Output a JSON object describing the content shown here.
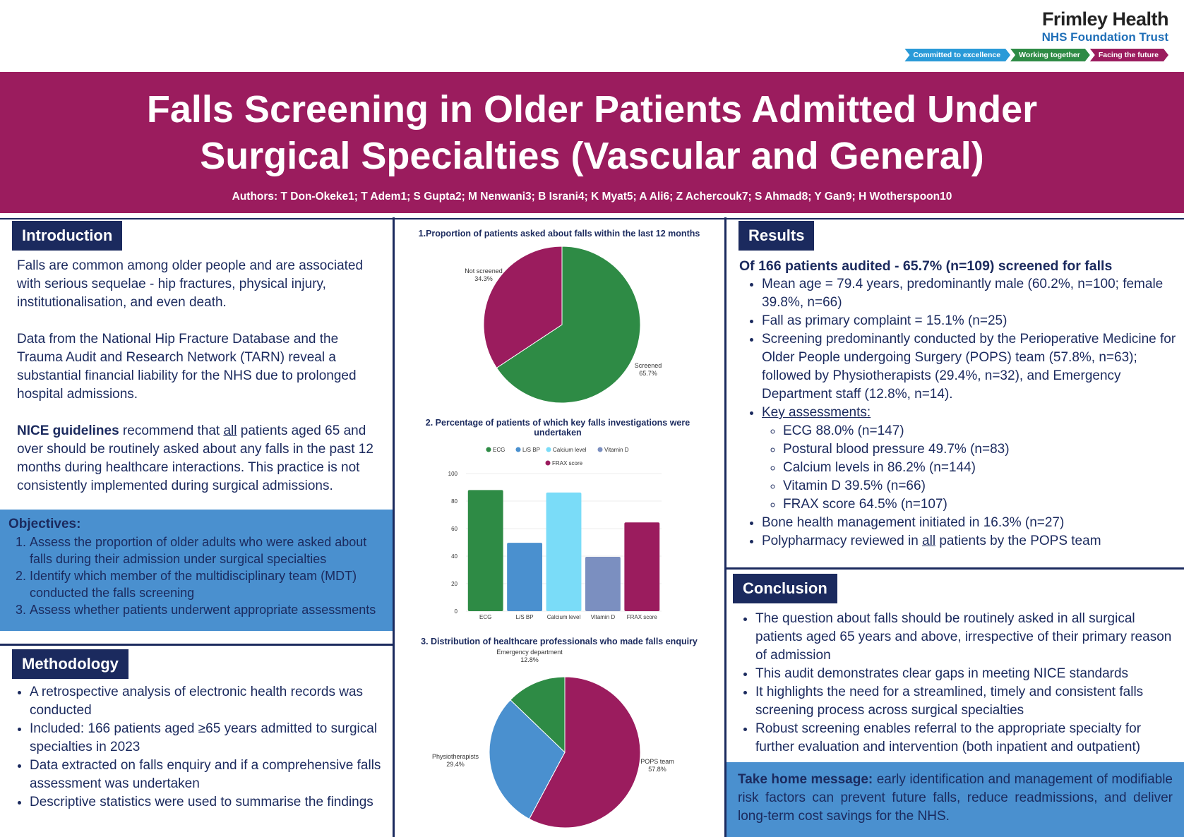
{
  "logo": {
    "name": "Frimley Health",
    "subtitle": "NHS Foundation Trust",
    "values": [
      "Committed to excellence",
      "Working together",
      "Facing the future"
    ],
    "value_colors": [
      "#2a9ad8",
      "#2e8b45",
      "#9b1c5e"
    ]
  },
  "title": "Falls Screening in Older Patients Admitted Under Surgical Specialties (Vascular and General)",
  "authors": "Authors: T Don-Okeke1; T Adem1; S Gupta2; M Nenwani3; B Israni4; K Myat5; A Ali6; Z Achercouk7; S Ahmad8; Y Gan9; H Wotherspoon10",
  "introduction": {
    "heading": "Introduction",
    "p1": "Falls are common among older people and are associated with serious sequelae - hip fractures, physical injury, institutionalisation, and even death.",
    "p2": "Data from the National Hip Fracture Database and the Trauma Audit and Research Network (TARN) reveal a substantial financial liability for the NHS due to prolonged hospital admissions.",
    "p3_bold": "NICE guidelines",
    "p3_a": " recommend that ",
    "p3_u": "all",
    "p3_b": " patients aged 65 and over should be routinely asked about any falls in the past 12 months during healthcare interactions. This practice is not consistently implemented during surgical admissions."
  },
  "objectives": {
    "heading": "Objectives",
    "items": [
      "Assess the proportion of older adults who were asked about falls during their admission under surgical specialties",
      "Identify which member of the multidisciplinary team (MDT) conducted the falls screening",
      "Assess whether patients underwent appropriate assessments"
    ]
  },
  "methodology": {
    "heading": "Methodology",
    "items": [
      "A retrospective analysis of electronic health records was conducted",
      "Included: 166 patients aged ≥65 years admitted to surgical specialties in 2023",
      "Data extracted on falls enquiry and if a comprehensive falls assessment was undertaken",
      "Descriptive statistics were used to summarise the findings"
    ]
  },
  "results": {
    "heading": "Results",
    "lead": "Of 166 patients audited - 65.7% (n=109) screened for falls",
    "items": [
      "Mean age = 79.4 years, predominantly male (60.2%, n=100; female 39.8%, n=66)",
      "Fall as primary complaint = 15.1% (n=25)",
      "Screening predominantly conducted by the Perioperative Medicine for Older People undergoing Surgery (POPS) team (57.8%, n=63); followed by Physiotherapists (29.4%, n=32), and Emergency Department staff (12.8%, n=14)."
    ],
    "key_label": "Key assessments: ",
    "key_items": [
      "ECG 88.0% (n=147)",
      "Postural blood pressure 49.7% (n=83)",
      "Calcium levels in 86.2% (n=144)",
      "Vitamin D 39.5% (n=66)",
      "FRAX score 64.5% (n=107)"
    ],
    "item_bone": "Bone health management initiated in 16.3% (n=27)",
    "poly_a": "Polypharmacy reviewed in ",
    "poly_u": "all",
    "poly_b": " patients by the POPS team"
  },
  "conclusion": {
    "heading": "Conclusion",
    "items": [
      "The question about falls should be routinely asked in all surgical patients aged 65 years and above, irrespective of their primary reason of admission",
      "This audit demonstrates clear gaps in meeting NICE standards",
      "It highlights the need for a streamlined, timely and consistent falls screening process across surgical specialties",
      "Robust screening enables referral to the appropriate specialty for further evaluation and intervention (both inpatient and outpatient)"
    ]
  },
  "take_home": {
    "label": "Take home message:",
    "text": " early identification and management of modifiable risk factors can prevent future falls, reduce readmissions, and deliver long-term cost savings for the NHS."
  },
  "chart_data": [
    {
      "type": "pie",
      "title": "1.Proportion of patients asked about falls within the last 12 months",
      "labels": [
        "Screened",
        "Not screened"
      ],
      "values": [
        65.7,
        34.3
      ],
      "value_labels": [
        "65.7%",
        "34.3%"
      ],
      "colors": [
        "#2e8b45",
        "#9b1c5e"
      ]
    },
    {
      "type": "bar",
      "title": "2. Percentage of patients of which key falls investigations were undertaken",
      "categories": [
        "ECG",
        "L/S BP",
        "Calcium level",
        "Vitamin D",
        "FRAX score"
      ],
      "values": [
        88.0,
        49.7,
        86.2,
        39.5,
        64.5
      ],
      "colors": [
        "#2e8b45",
        "#4a90cf",
        "#7adcf8",
        "#7b8fc0",
        "#9b1c5e"
      ],
      "ylim": [
        0,
        100
      ],
      "yticks": [
        "0",
        "20",
        "40",
        "60",
        "80",
        "100"
      ],
      "grid": true,
      "legend": "top"
    },
    {
      "type": "pie",
      "title": "3. Distribution of healthcare professionals who made falls enquiry",
      "labels": [
        "POPS team",
        "Physiotherapists",
        "Emergency department"
      ],
      "values": [
        57.8,
        29.4,
        12.8
      ],
      "value_labels": [
        "57.8%",
        "29.4%",
        "12.8%"
      ],
      "colors": [
        "#9b1c5e",
        "#4a90cf",
        "#2e8b45"
      ]
    }
  ]
}
